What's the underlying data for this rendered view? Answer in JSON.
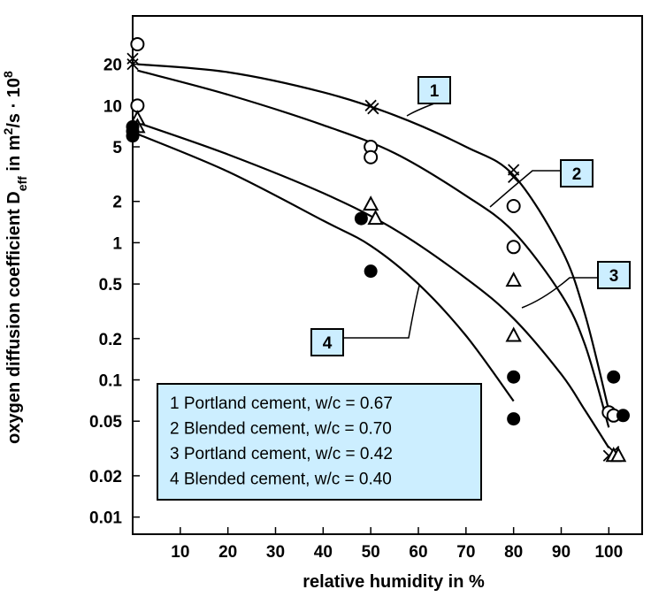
{
  "chart_data": {
    "type": "scatter",
    "title": "",
    "xlabel": "relative humidity in %",
    "ylabel_main": "oxygen diffusion coefficient D",
    "ylabel_sub": "eff",
    "ylabel_tail": " in m",
    "ylabel_sup1": "2",
    "ylabel_mid": "/s · 10",
    "ylabel_sup2": "8",
    "xlim": [
      0,
      107
    ],
    "ylim": [
      0.0075,
      45
    ],
    "yscale": "log",
    "xticks": [
      10,
      20,
      30,
      40,
      50,
      60,
      70,
      80,
      90,
      100
    ],
    "xtick_labels": [
      "10",
      "20",
      "30",
      "40",
      "50",
      "60",
      "70",
      "80",
      "90",
      "100"
    ],
    "yticks": [
      20,
      10,
      5,
      2,
      1,
      0.5,
      0.2,
      0.1,
      0.05,
      0.02,
      0.01
    ],
    "ytick_labels": [
      "20",
      "10",
      "5",
      "2",
      "1",
      "0.5",
      "0.2",
      "0.1",
      "0.05",
      "0.02",
      "0.01"
    ],
    "grid": false,
    "series": [
      {
        "label_number": "1",
        "marker": "cross",
        "points": [
          [
            0,
            22
          ],
          [
            0,
            20
          ],
          [
            50,
            10
          ],
          [
            50.5,
            9.5
          ],
          [
            80,
            3.4
          ],
          [
            80,
            3.0
          ],
          [
            100,
            0.028
          ],
          [
            101,
            0.03
          ]
        ],
        "curve": [
          [
            1,
            20
          ],
          [
            20,
            17.5
          ],
          [
            40,
            12.5
          ],
          [
            55,
            8.5
          ],
          [
            70,
            5
          ],
          [
            80,
            3.1
          ],
          [
            90,
            0.9
          ],
          [
            95,
            0.3
          ],
          [
            100,
            0.06
          ]
        ]
      },
      {
        "label_number": "2",
        "marker": "open-circle",
        "points": [
          [
            1,
            28
          ],
          [
            1,
            10
          ],
          [
            50,
            5
          ],
          [
            50,
            4.2
          ],
          [
            80,
            1.85
          ],
          [
            80,
            0.93
          ],
          [
            100,
            0.058
          ],
          [
            101,
            0.055
          ]
        ],
        "curve": [
          [
            1,
            18
          ],
          [
            20,
            12
          ],
          [
            40,
            7.2
          ],
          [
            55,
            4.5
          ],
          [
            70,
            2.2
          ],
          [
            80,
            1.2
          ],
          [
            90,
            0.42
          ],
          [
            95,
            0.18
          ],
          [
            100,
            0.045
          ]
        ]
      },
      {
        "label_number": "3",
        "marker": "open-triangle",
        "points": [
          [
            1,
            8
          ],
          [
            1,
            7
          ],
          [
            50,
            1.9
          ],
          [
            51,
            1.5
          ],
          [
            80,
            0.53
          ],
          [
            80,
            0.21
          ],
          [
            101,
            0.028
          ],
          [
            102,
            0.028
          ]
        ],
        "curve": [
          [
            1,
            7.5
          ],
          [
            20,
            4.4
          ],
          [
            40,
            2.3
          ],
          [
            55,
            1.25
          ],
          [
            70,
            0.55
          ],
          [
            80,
            0.28
          ],
          [
            90,
            0.11
          ],
          [
            95,
            0.06
          ],
          [
            100,
            0.032
          ]
        ]
      },
      {
        "label_number": "4",
        "marker": "filled-circle",
        "points": [
          [
            0,
            7
          ],
          [
            0,
            6.5
          ],
          [
            0,
            6
          ],
          [
            48,
            1.5
          ],
          [
            50,
            0.62
          ],
          [
            80,
            0.105
          ],
          [
            80,
            0.052
          ],
          [
            101,
            0.105
          ],
          [
            103,
            0.055
          ]
        ],
        "curve": [
          [
            1,
            6.2
          ],
          [
            20,
            3.3
          ],
          [
            40,
            1.45
          ],
          [
            50,
            0.95
          ],
          [
            60,
            0.5
          ],
          [
            70,
            0.21
          ],
          [
            80,
            0.07
          ]
        ]
      }
    ],
    "legend": {
      "position": "bottom-center",
      "entries": [
        "1  Portland cement, w/c = 0.67",
        "2  Blended cement, w/c = 0.70",
        "3  Portland cement, w/c = 0.42",
        "4  Blended cement, w/c = 0.40"
      ],
      "background": "#cceeff"
    },
    "colors": {
      "box_fill": "#cceeff",
      "ink": "#000000"
    }
  }
}
